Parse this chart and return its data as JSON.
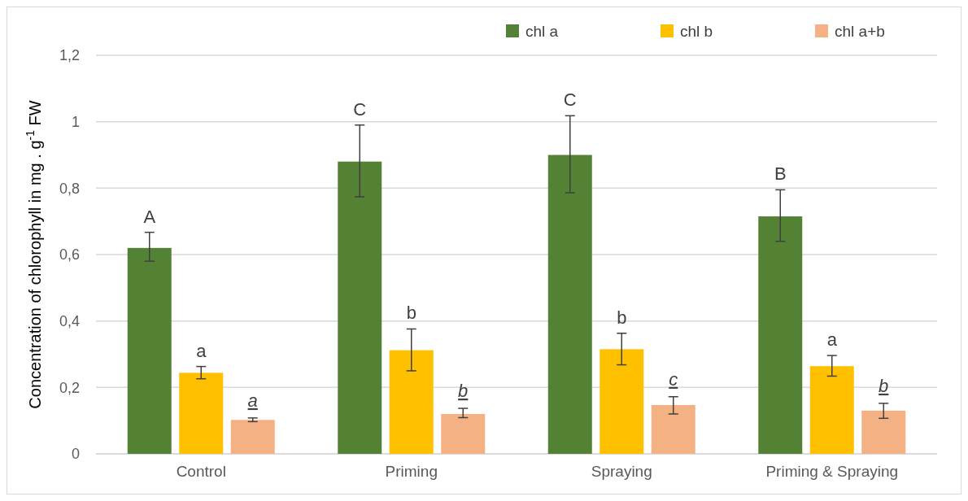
{
  "chart_data": {
    "type": "bar",
    "ylabel": "Concentration of chlorophyll in mg . g$^{-1}$ FW",
    "categories": [
      "Control",
      "Priming",
      "Spraying",
      "Priming & Spraying"
    ],
    "series": [
      {
        "name": "chl a",
        "color": "#548235",
        "values": [
          0.62,
          0.88,
          0.9,
          0.715
        ],
        "errors": [
          [
            0.58,
            0.667
          ],
          [
            0.774,
            0.99
          ],
          [
            0.786,
            1.018
          ],
          [
            0.64,
            0.795
          ]
        ]
      },
      {
        "name": "chl b",
        "color": "#ffc000",
        "values": [
          0.244,
          0.312,
          0.315,
          0.264
        ],
        "errors": [
          [
            0.226,
            0.263
          ],
          [
            0.25,
            0.376
          ],
          [
            0.268,
            0.363
          ],
          [
            0.234,
            0.296
          ]
        ]
      },
      {
        "name": "chl a+b",
        "color": "#f4b183",
        "values": [
          0.102,
          0.12,
          0.147,
          0.13
        ],
        "errors": [
          [
            0.097,
            0.108
          ],
          [
            0.109,
            0.137
          ],
          [
            0.12,
            0.172
          ],
          [
            0.107,
            0.152
          ]
        ]
      }
    ],
    "annotations": [
      "A",
      "a",
      "a",
      "C",
      "b",
      "b",
      "C",
      "b",
      "c",
      "B",
      "a",
      "b"
    ],
    "ylim": [
      0,
      1.2
    ],
    "yticks": [
      {
        "value": 0,
        "label": "0"
      },
      {
        "value": 0.2,
        "label": "0,2"
      },
      {
        "value": 0.4,
        "label": "0,4"
      },
      {
        "value": 0.6,
        "label": "0,6"
      },
      {
        "value": 0.8,
        "label": "0,8"
      },
      {
        "value": 1,
        "label": "1"
      },
      {
        "value": 1.2,
        "label": "1,2"
      }
    ],
    "grid": "y",
    "legend": "top right"
  }
}
